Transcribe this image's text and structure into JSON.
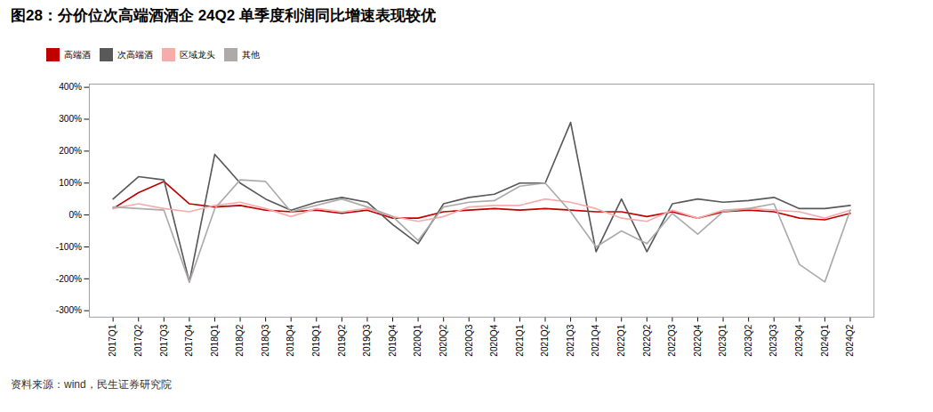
{
  "chart_data": {
    "type": "line",
    "title": "图28：分价位次高端酒酒企 24Q2 单季度利润同比增速表现较优",
    "footnote": "资料来源：wind，民生证券研究院",
    "categories": [
      "2017Q1",
      "2017Q2",
      "2017Q3",
      "2017Q4",
      "2018Q1",
      "2018Q2",
      "2018Q3",
      "2018Q4",
      "2019Q1",
      "2019Q2",
      "2019Q3",
      "2019Q4",
      "2020Q1",
      "2020Q2",
      "2020Q3",
      "2020Q4",
      "2021Q1",
      "2021Q2",
      "2021Q3",
      "2021Q4",
      "2022Q1",
      "2022Q2",
      "2022Q3",
      "2022Q4",
      "2023Q1",
      "2023Q2",
      "2023Q3",
      "2023Q4",
      "2024Q1",
      "2024Q2"
    ],
    "series": [
      {
        "name": "高端酒",
        "color": "#C00000",
        "values": [
          20,
          70,
          105,
          35,
          25,
          30,
          15,
          10,
          15,
          5,
          15,
          -10,
          -10,
          10,
          15,
          20,
          15,
          20,
          15,
          10,
          10,
          -5,
          10,
          -10,
          10,
          15,
          10,
          -10,
          -15,
          5
        ]
      },
      {
        "name": "次高端酒",
        "color": "#595959",
        "values": [
          50,
          120,
          110,
          -210,
          190,
          100,
          50,
          15,
          40,
          55,
          40,
          -30,
          -90,
          35,
          55,
          65,
          100,
          100,
          290,
          -115,
          50,
          -115,
          35,
          50,
          40,
          45,
          55,
          20,
          20,
          30
        ]
      },
      {
        "name": "区域龙头",
        "color": "#F4ACAC",
        "values": [
          20,
          35,
          20,
          10,
          30,
          40,
          20,
          -5,
          20,
          10,
          20,
          -5,
          -20,
          -5,
          25,
          30,
          30,
          50,
          40,
          20,
          -10,
          -20,
          15,
          -10,
          15,
          20,
          15,
          10,
          -10,
          15
        ]
      },
      {
        "name": "其他",
        "color": "#AEAAAA",
        "values": [
          25,
          20,
          15,
          -210,
          20,
          110,
          105,
          10,
          30,
          50,
          25,
          -5,
          -80,
          25,
          40,
          45,
          90,
          100,
          10,
          -100,
          -50,
          -90,
          5,
          -60,
          10,
          20,
          35,
          -155,
          -210,
          15
        ]
      }
    ],
    "ylim": [
      -320,
      410
    ],
    "yticks": [
      {
        "value": -300,
        "label": "-300%"
      },
      {
        "value": -200,
        "label": "-200%"
      },
      {
        "value": -100,
        "label": "-100%"
      },
      {
        "value": 0,
        "label": "0%"
      },
      {
        "value": 100,
        "label": "100%"
      },
      {
        "value": 200,
        "label": "200%"
      },
      {
        "value": 300,
        "label": "300%"
      },
      {
        "value": 400,
        "label": "400%"
      }
    ],
    "grid": false,
    "legend": "top"
  }
}
